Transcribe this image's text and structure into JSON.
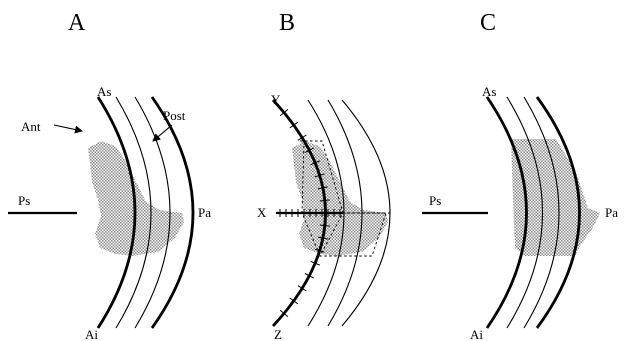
{
  "panels": {
    "a": {
      "letter": "A",
      "labels": {
        "as": "As",
        "ant": "Ant",
        "post": "Post",
        "ps": "Ps",
        "pa": "Pa",
        "ai": "Ai"
      }
    },
    "b": {
      "letter": "B",
      "labels": {
        "y": "Y",
        "x": "X",
        "z": "Z"
      }
    },
    "c": {
      "letter": "C",
      "labels": {
        "as": "As",
        "ps": "Ps",
        "pa": "Pa",
        "ai": "Ai"
      }
    }
  },
  "colors": {
    "ink": "#000000",
    "shading_dot": "#8a8a8a",
    "background": "#ffffff"
  }
}
